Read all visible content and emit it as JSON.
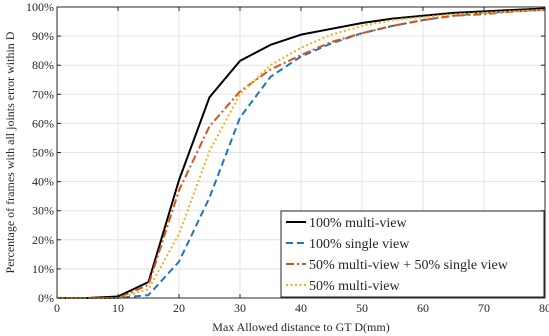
{
  "chart_data": {
    "type": "line",
    "title": "",
    "xlabel": "Max Allowed distance to GT D(mm)",
    "ylabel": "Percentage of frames with all joints error within D",
    "xlim": [
      0,
      80
    ],
    "ylim": [
      0,
      100
    ],
    "xticks": [
      0,
      10,
      20,
      30,
      40,
      50,
      60,
      70,
      80
    ],
    "yticks": [
      0,
      10,
      20,
      30,
      40,
      50,
      60,
      70,
      80,
      90,
      100
    ],
    "xtick_labels": [
      "0",
      "10",
      "20",
      "30",
      "40",
      "50",
      "60",
      "70",
      "80"
    ],
    "ytick_labels": [
      "0%",
      "10%",
      "20%",
      "30%",
      "40%",
      "50%",
      "60%",
      "70%",
      "80%",
      "90%",
      "100%"
    ],
    "grid": true,
    "legend_position": "bottom-right",
    "x": [
      0,
      5,
      10,
      15,
      20,
      25,
      30,
      35,
      40,
      45,
      50,
      55,
      60,
      65,
      70,
      75,
      80
    ],
    "series": [
      {
        "name": "100% multi-view",
        "color": "#000000",
        "dash": "solid",
        "values": [
          0,
          0,
          0.5,
          5.5,
          40.5,
          69,
          81.5,
          87,
          90.5,
          92.5,
          94.5,
          96,
          97,
          98,
          98.5,
          99,
          99.5
        ]
      },
      {
        "name": "100% single view",
        "color": "#1f77b4",
        "dash": "dashed",
        "values": [
          0,
          0,
          0,
          1,
          12.5,
          34.5,
          62,
          76,
          83,
          87.5,
          91,
          93.5,
          95.5,
          97,
          98,
          98.5,
          99
        ]
      },
      {
        "name": "50% multi-view + 50% single view",
        "color": "#d95319",
        "dash": "dashdot",
        "values": [
          0,
          0,
          0,
          4.5,
          37,
          59,
          71,
          78.5,
          83.5,
          88,
          91,
          93.5,
          95.5,
          97,
          97.5,
          98.5,
          99
        ]
      },
      {
        "name": "50% multi-view",
        "color": "#edb120",
        "dash": "dotted",
        "values": [
          0,
          0,
          0,
          3,
          22,
          50.5,
          70,
          80,
          86,
          90.5,
          93.5,
          95.5,
          96.5,
          97.5,
          98,
          98.5,
          99
        ]
      }
    ]
  }
}
